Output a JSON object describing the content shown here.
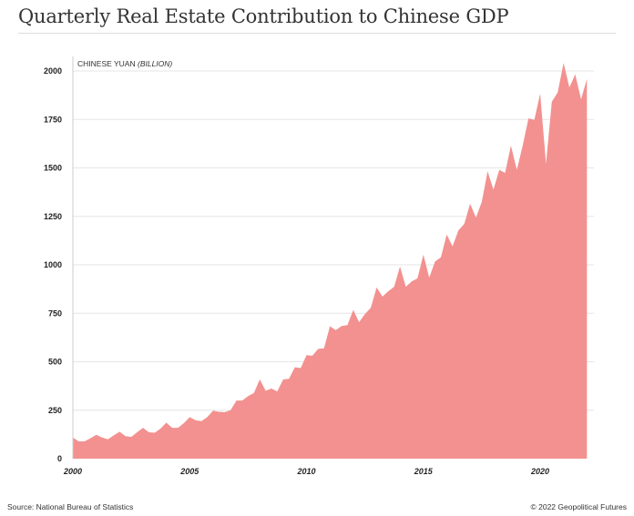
{
  "chart_data": {
    "type": "area",
    "title": "Quarterly Real Estate Contribution to Chinese GDP",
    "ylabel": "CHINESE YUAN",
    "ylabel_unit": "(BILLION)",
    "xlabel": "",
    "frequency": "quarterly",
    "start": "2000 Q1",
    "xlim": [
      2000,
      2022.3
    ],
    "ylim": [
      0,
      2000
    ],
    "yticks": [
      0,
      250,
      500,
      750,
      1000,
      1250,
      1500,
      1750,
      2000
    ],
    "xticks": [
      2000,
      2005,
      2010,
      2015,
      2020
    ],
    "grid": "horizontal",
    "color": "#f2918f",
    "values": [
      109,
      89,
      89,
      105,
      123,
      109,
      100,
      120,
      139,
      116,
      112,
      136,
      159,
      136,
      134,
      155,
      186,
      159,
      159,
      183,
      214,
      198,
      194,
      214,
      248,
      242,
      240,
      250,
      300,
      300,
      323,
      339,
      409,
      350,
      362,
      347,
      409,
      412,
      472,
      467,
      534,
      531,
      566,
      569,
      683,
      663,
      684,
      689,
      767,
      704,
      746,
      778,
      883,
      836,
      864,
      887,
      992,
      887,
      914,
      930,
      1052,
      934,
      1017,
      1039,
      1156,
      1095,
      1177,
      1211,
      1315,
      1243,
      1325,
      1482,
      1388,
      1490,
      1474,
      1615,
      1490,
      1615,
      1756,
      1748,
      1884,
      1521,
      1842,
      1889,
      2041,
      1915,
      1983,
      1853,
      1959
    ]
  },
  "footer": {
    "source": "Source: National Bureau of Statistics",
    "copyright": "© 2022 Geopolitical Futures"
  }
}
